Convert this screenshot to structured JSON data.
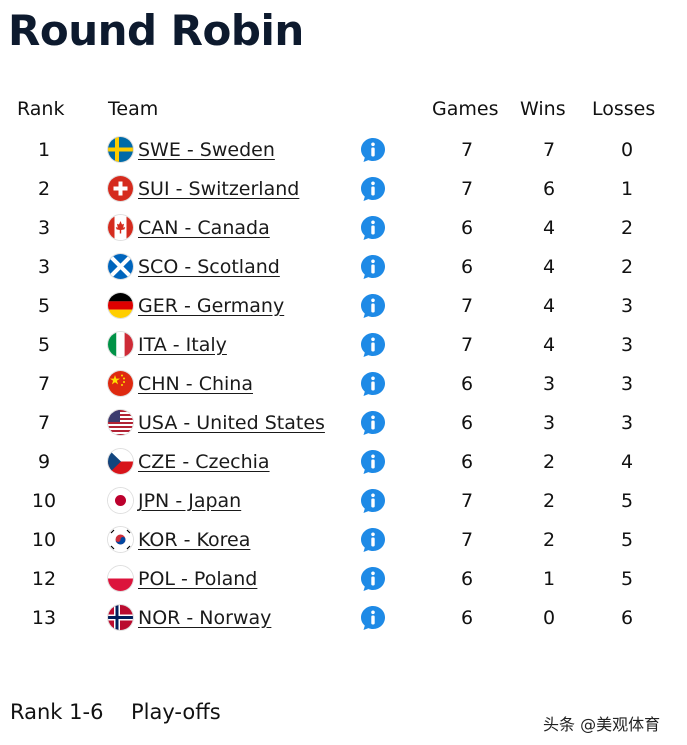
{
  "title": "Round Robin",
  "headers": {
    "rank": "Rank",
    "team": "Team",
    "games": "Games",
    "wins": "Wins",
    "losses": "Losses"
  },
  "colors": {
    "title": "#0d1a2e",
    "info_icon": "#1e8ae6"
  },
  "rows": [
    {
      "rank": "1",
      "flag": "sweden-flag-icon",
      "team": "SWE - Sweden",
      "games": "7",
      "wins": "7",
      "losses": "0"
    },
    {
      "rank": "2",
      "flag": "switzerland-flag-icon",
      "team": "SUI - Switzerland",
      "games": "7",
      "wins": "6",
      "losses": "1"
    },
    {
      "rank": "3",
      "flag": "canada-flag-icon",
      "team": "CAN - Canada",
      "games": "6",
      "wins": "4",
      "losses": "2"
    },
    {
      "rank": "3",
      "flag": "scotland-flag-icon",
      "team": "SCO - Scotland",
      "games": "6",
      "wins": "4",
      "losses": "2"
    },
    {
      "rank": "5",
      "flag": "germany-flag-icon",
      "team": "GER - Germany",
      "games": "7",
      "wins": "4",
      "losses": "3"
    },
    {
      "rank": "5",
      "flag": "italy-flag-icon",
      "team": "ITA - Italy",
      "games": "7",
      "wins": "4",
      "losses": "3"
    },
    {
      "rank": "7",
      "flag": "china-flag-icon",
      "team": "CHN - China",
      "games": "6",
      "wins": "3",
      "losses": "3"
    },
    {
      "rank": "7",
      "flag": "usa-flag-icon",
      "team": "USA - United States",
      "games": "6",
      "wins": "3",
      "losses": "3"
    },
    {
      "rank": "9",
      "flag": "czechia-flag-icon",
      "team": "CZE - Czechia",
      "games": "6",
      "wins": "2",
      "losses": "4"
    },
    {
      "rank": "10",
      "flag": "japan-flag-icon",
      "team": "JPN - Japan",
      "games": "7",
      "wins": "2",
      "losses": "5"
    },
    {
      "rank": "10",
      "flag": "korea-flag-icon",
      "team": "KOR - Korea",
      "games": "7",
      "wins": "2",
      "losses": "5"
    },
    {
      "rank": "12",
      "flag": "poland-flag-icon",
      "team": "POL - Poland",
      "games": "6",
      "wins": "1",
      "losses": "5"
    },
    {
      "rank": "13",
      "flag": "norway-flag-icon",
      "team": "NOR - Norway",
      "games": "6",
      "wins": "0",
      "losses": "6"
    }
  ],
  "footer": {
    "rank_range": "Rank 1-6",
    "label": "Play-offs"
  },
  "watermark": "头条 @美观体育"
}
